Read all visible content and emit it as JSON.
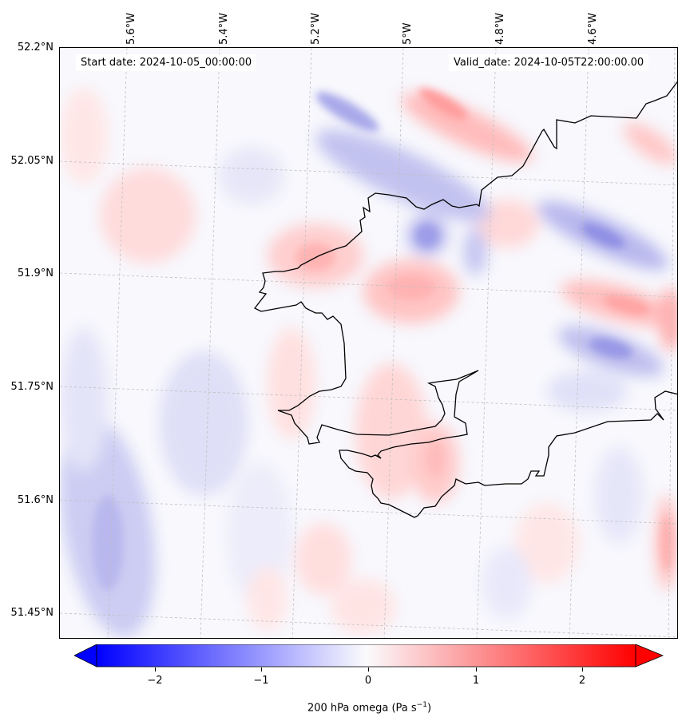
{
  "map": {
    "start_date": "Start date: 2024-10-05_00:00:00",
    "valid_date": "Valid_date: 2024-10-05T22:00:00.00",
    "lat_labels": [
      "52.2°N",
      "52.05°N",
      "51.9°N",
      "51.75°N",
      "51.6°N",
      "51.45°N"
    ],
    "lon_labels": [
      "5.6°W",
      "5.4°W",
      "5.2°W",
      "5°W",
      "4.8°W",
      "4.6°W"
    ],
    "field_colors": {
      "negative": "#0000ff",
      "neutral": "#f8f8fd",
      "positive": "#ff0000"
    },
    "coastline_color": "#000000",
    "gridlines": "dashed light grey"
  },
  "colorbar": {
    "label_main": "200 hPa omega (Pa s",
    "label_exp": "−1",
    "label_close": ")",
    "ticks": [
      "−2",
      "−1",
      "0",
      "1",
      "2"
    ],
    "range": [
      -2.5,
      2.5
    ],
    "extend": "both"
  }
}
